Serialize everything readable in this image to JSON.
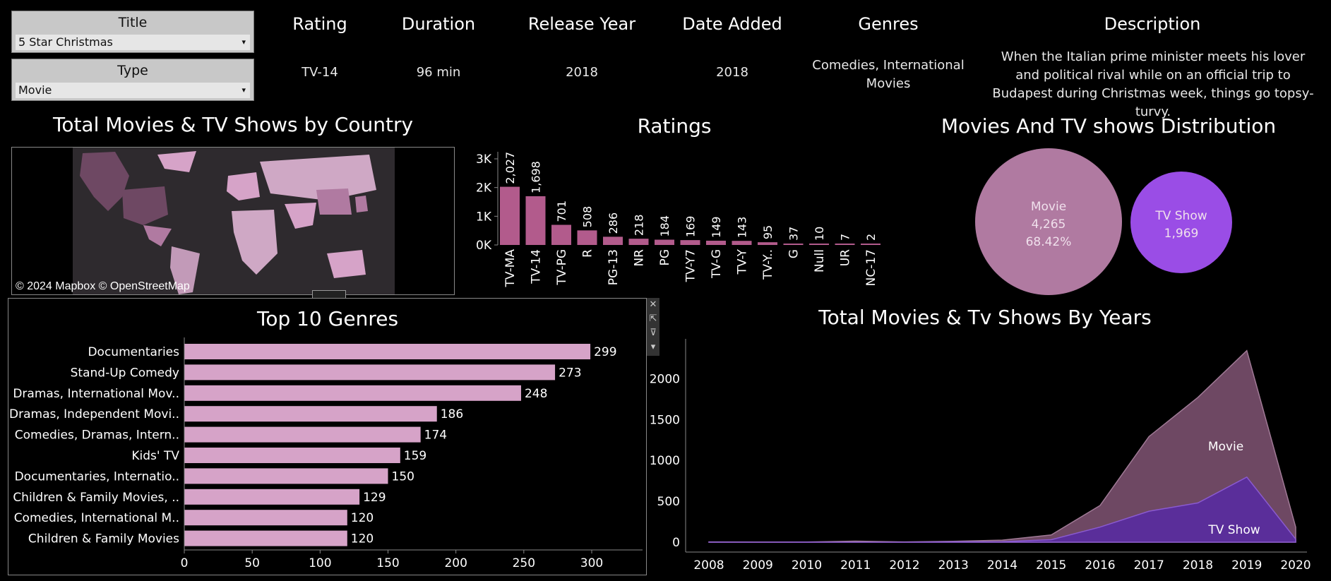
{
  "filters": {
    "title": {
      "label": "Title",
      "value": "5 Star Christmas"
    },
    "type": {
      "label": "Type",
      "value": "Movie"
    }
  },
  "details": {
    "headers": [
      "Rating",
      "Duration",
      "Release Year",
      "Date Added",
      "Genres",
      "Description"
    ],
    "rating": "TV-14",
    "duration": "96 min",
    "release_year": "2018",
    "date_added": "2018",
    "genres": "Comedies, International Movies",
    "description": "When the Italian prime minister meets his lover and political rival while on an official trip to Budapest during Christmas week, things go topsy-turvy."
  },
  "map": {
    "title": "Total Movies & TV Shows by Country",
    "credit": "© 2024 Mapbox © OpenStreetMap"
  },
  "ratings_chart": {
    "title": "Ratings"
  },
  "distribution_chart": {
    "title": "Movies And TV shows Distribution"
  },
  "genres_chart": {
    "title": "Top 10 Genres"
  },
  "years_chart": {
    "title": "Total Movies & Tv Shows By Years"
  },
  "colors": {
    "bar_pink": "#d6a3c8",
    "rating_bar": "#b25b8c",
    "movie_bubble": "#b07aa1",
    "tv_bubble": "#9a4de6",
    "movie_area": "#6e4863",
    "tv_area": "#5a2e9a"
  },
  "chart_data": [
    {
      "type": "bar",
      "title": "Ratings",
      "categories": [
        "TV-MA",
        "TV-14",
        "TV-PG",
        "R",
        "PG-13",
        "NR",
        "PG",
        "TV-Y7",
        "TV-G",
        "TV-Y",
        "TV-Y..",
        "G",
        "Null",
        "UR",
        "NC-17"
      ],
      "values": [
        2027,
        1698,
        701,
        508,
        286,
        218,
        184,
        169,
        149,
        143,
        95,
        37,
        10,
        7,
        2
      ],
      "labels": [
        "2,027",
        "1,698",
        "701",
        "508",
        "286",
        "218",
        "184",
        "169",
        "149",
        "143",
        "95",
        "37",
        "10",
        "7",
        "2"
      ],
      "yticks": [
        "0K",
        "1K",
        "2K",
        "3K"
      ],
      "ylim": [
        0,
        3000
      ]
    },
    {
      "type": "bubble",
      "title": "Movies And TV shows Distribution",
      "items": [
        {
          "name": "Movie",
          "value": "4,265",
          "share": "68.42%"
        },
        {
          "name": "TV Show",
          "value": "1,969"
        }
      ]
    },
    {
      "type": "bar",
      "orientation": "horizontal",
      "title": "Top 10 Genres",
      "categories": [
        "Documentaries",
        "Stand-Up Comedy",
        "Dramas, International Mov..",
        "Dramas, Independent Movi..",
        "Comedies, Dramas, Intern..",
        "Kids' TV",
        "Documentaries, Internatio..",
        "Children & Family Movies, ..",
        "Comedies, International M..",
        "Children & Family Movies"
      ],
      "values": [
        299,
        273,
        248,
        186,
        174,
        159,
        150,
        129,
        120,
        120
      ],
      "xticks": [
        "0",
        "50",
        "100",
        "150",
        "200",
        "250",
        "300"
      ],
      "xlim": [
        0,
        330
      ]
    },
    {
      "type": "area",
      "title": "Total Movies & Tv Shows By Years",
      "x": [
        "2008",
        "2009",
        "2010",
        "2011",
        "2012",
        "2013",
        "2014",
        "2015",
        "2016",
        "2017",
        "2018",
        "2019",
        "2020"
      ],
      "series": [
        {
          "name": "Movie",
          "values": [
            2,
            2,
            1,
            13,
            3,
            6,
            19,
            58,
            264,
            913,
            1290,
            1546,
            147
          ]
        },
        {
          "name": "TV Show",
          "values": [
            1,
            0,
            1,
            0,
            0,
            5,
            6,
            30,
            185,
            379,
            480,
            796,
            37
          ]
        }
      ],
      "yticks": [
        "0",
        "500",
        "1000",
        "1500",
        "2000"
      ],
      "ylim": [
        0,
        2400
      ]
    }
  ]
}
